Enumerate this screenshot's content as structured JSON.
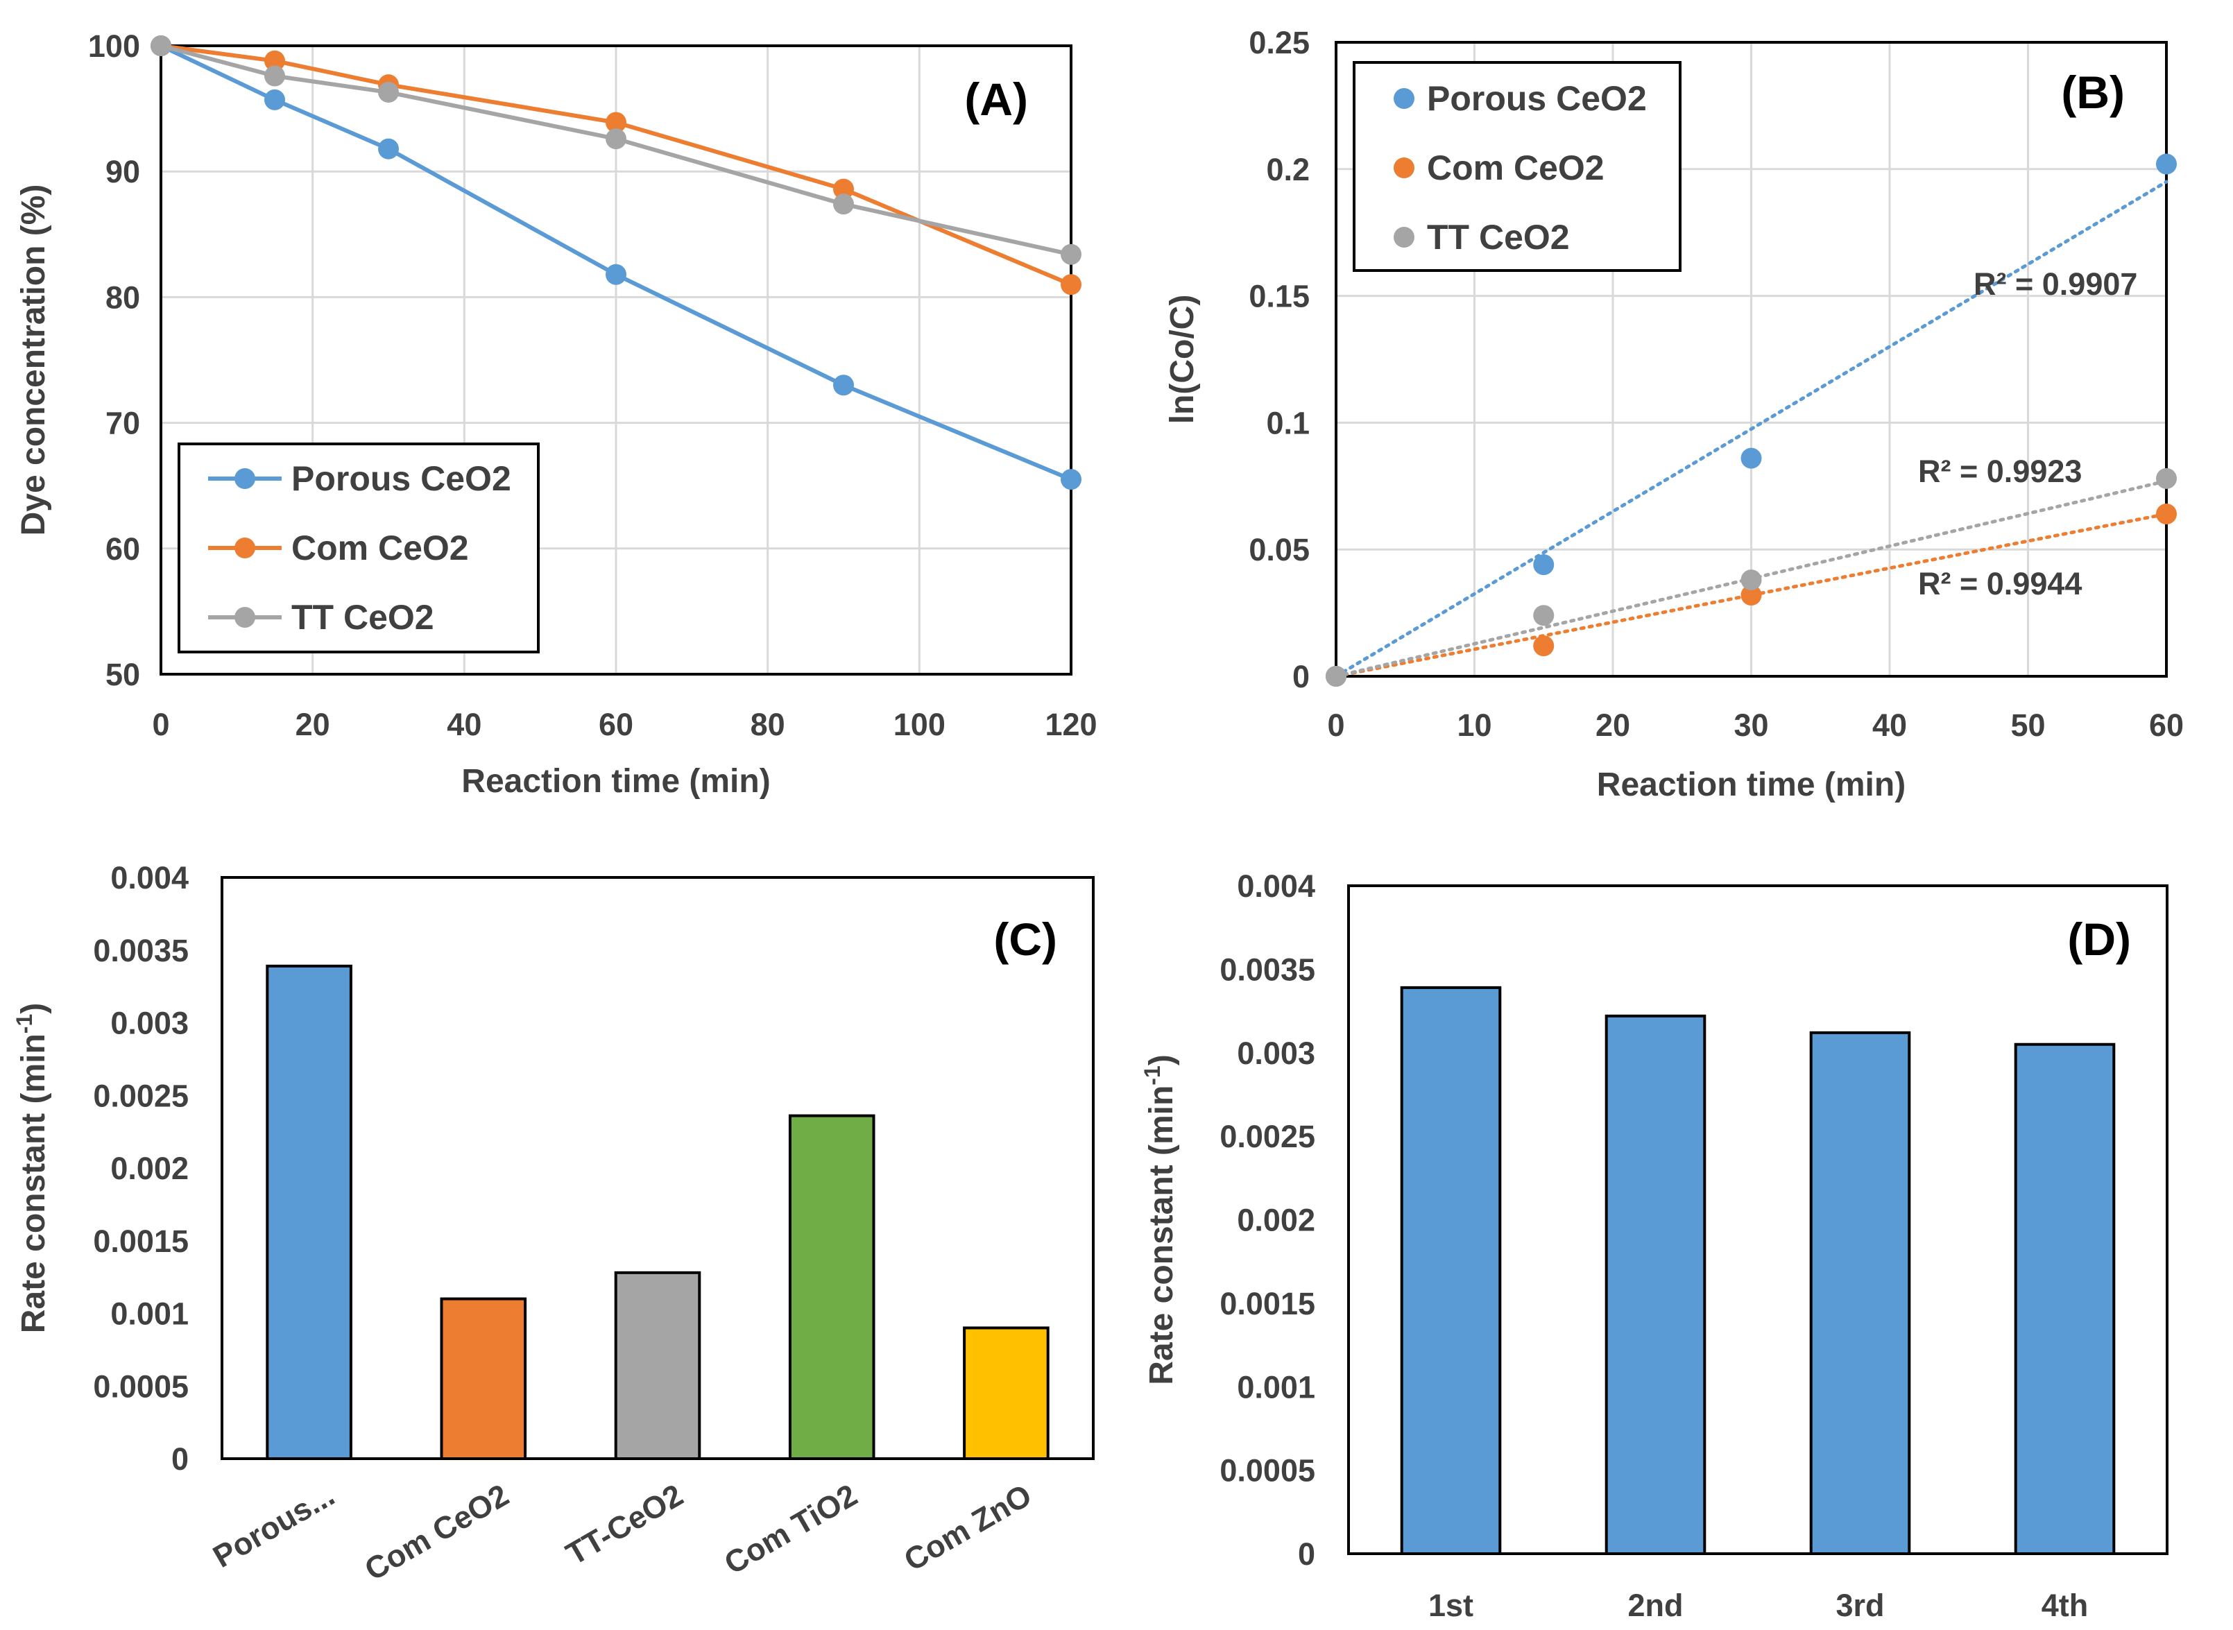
{
  "chart_data": [
    {
      "id": "A",
      "type": "line",
      "panel_label": "(A)",
      "xlabel": "Reaction time (min)",
      "ylabel": "Dye concentration (%)",
      "xlim": [
        0,
        120
      ],
      "ylim": [
        50,
        100
      ],
      "xticks": [
        "0",
        "20",
        "40",
        "60",
        "80",
        "100",
        "120"
      ],
      "yticks": [
        "50",
        "60",
        "70",
        "80",
        "90",
        "100"
      ],
      "grid": true,
      "legend": "bottom-left",
      "series": [
        {
          "name": "Porous CeO2",
          "color": "#5B9BD5",
          "x": [
            0,
            15,
            30,
            60,
            90,
            120
          ],
          "values": [
            100,
            95.7,
            91.8,
            81.8,
            73.0,
            65.5
          ]
        },
        {
          "name": "Com CeO2",
          "color": "#ED7D31",
          "x": [
            0,
            15,
            30,
            60,
            90,
            120
          ],
          "values": [
            100,
            98.8,
            96.9,
            93.9,
            88.6,
            81.0
          ]
        },
        {
          "name": "TT CeO2",
          "color": "#A5A5A5",
          "x": [
            0,
            15,
            30,
            60,
            90,
            120
          ],
          "values": [
            100,
            97.6,
            96.3,
            92.6,
            87.4,
            83.4
          ]
        }
      ]
    },
    {
      "id": "B",
      "type": "scatter",
      "panel_label": "(B)",
      "xlabel": "Reaction time (min)",
      "ylabel": "ln(Co/C)",
      "xlim": [
        0,
        60
      ],
      "ylim": [
        0,
        0.25
      ],
      "xticks": [
        "0",
        "10",
        "20",
        "30",
        "40",
        "50",
        "60"
      ],
      "yticks": [
        "0",
        "0.05",
        "0.1",
        "0.15",
        "0.2",
        "0.25"
      ],
      "grid": true,
      "legend": "top-left",
      "series": [
        {
          "name": "Porous CeO2",
          "color": "#5B9BD5",
          "x": [
            0,
            15,
            30,
            60
          ],
          "values": [
            0,
            0.044,
            0.086,
            0.202
          ],
          "trendline": [
            0,
            0.195
          ],
          "r2_label": "R² = 0.9907"
        },
        {
          "name": "Com CeO2",
          "color": "#ED7D31",
          "x": [
            0,
            15,
            30,
            60
          ],
          "values": [
            0,
            0.012,
            0.032,
            0.064
          ],
          "trendline": [
            0,
            0.064
          ],
          "r2_label": "R² = 0.9944"
        },
        {
          "name": "TT CeO2",
          "color": "#A5A5A5",
          "x": [
            0,
            15,
            30,
            60
          ],
          "values": [
            0,
            0.024,
            0.038,
            0.078
          ],
          "trendline": [
            0,
            0.077
          ],
          "r2_label": "R² = 0.9923"
        }
      ]
    },
    {
      "id": "C",
      "type": "bar",
      "panel_label": "(C)",
      "ylabel_main": "Rate constant (min",
      "ylabel_sup": "-1",
      "ylabel_end": ")",
      "ylim": [
        0,
        0.004
      ],
      "yticks": [
        "0",
        "0.0005",
        "0.001",
        "0.0015",
        "0.002",
        "0.0025",
        "0.003",
        "0.0035",
        "0.004"
      ],
      "grid": false,
      "categories": [
        "Porous...",
        "Com CeO2",
        "TT-CeO2",
        "Com TiO2",
        "Com ZnO"
      ],
      "values": [
        0.00339,
        0.0011,
        0.00128,
        0.00236,
        0.0009
      ],
      "colors": [
        "#5B9BD5",
        "#ED7D31",
        "#A5A5A5",
        "#70AD47",
        "#FFC000"
      ]
    },
    {
      "id": "D",
      "type": "bar",
      "panel_label": "(D)",
      "ylabel_main": "Rate constant (min",
      "ylabel_sup": "-1",
      "ylabel_end": ")",
      "ylim": [
        0,
        0.004
      ],
      "yticks": [
        "0",
        "0.0005",
        "0.001",
        "0.0015",
        "0.002",
        "0.0025",
        "0.003",
        "0.0035",
        "0.004"
      ],
      "grid": false,
      "categories": [
        "1st",
        "2nd",
        "3rd",
        "4th"
      ],
      "values": [
        0.00339,
        0.00322,
        0.00312,
        0.00305
      ],
      "colors": [
        "#5B9BD5",
        "#5B9BD5",
        "#5B9BD5",
        "#5B9BD5"
      ]
    }
  ]
}
